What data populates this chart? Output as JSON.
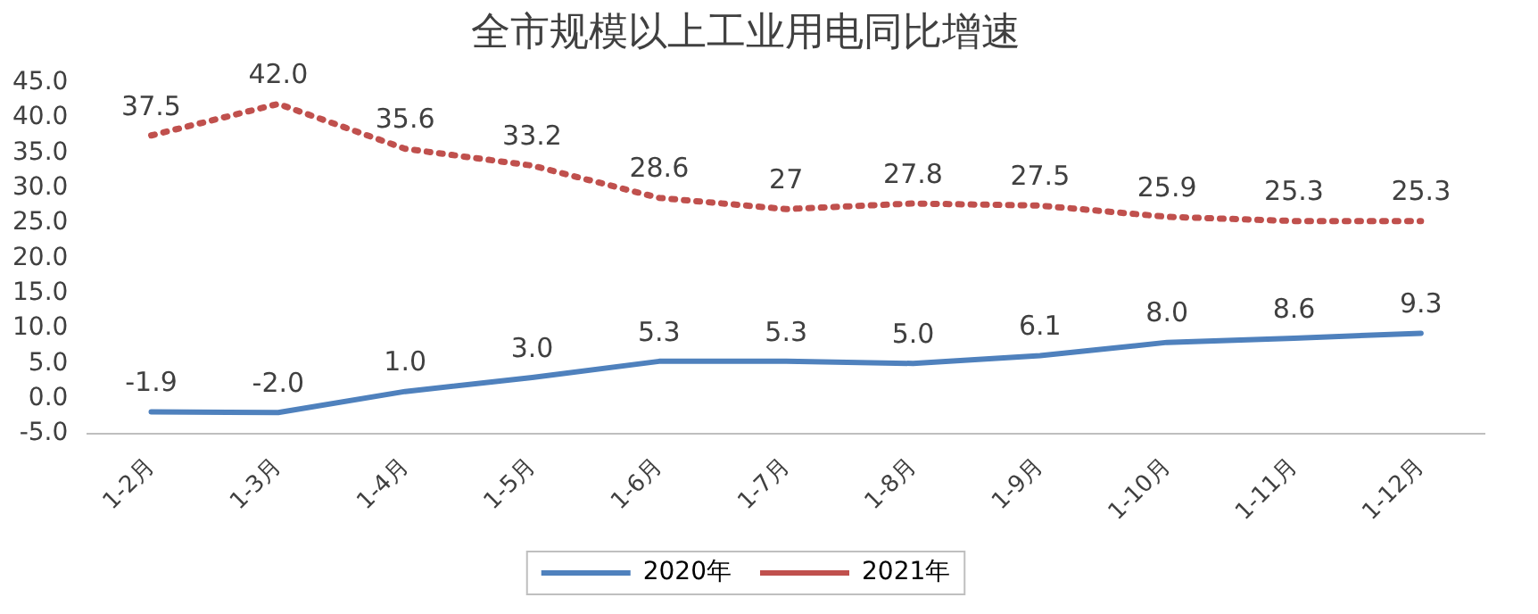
{
  "chart_data": {
    "type": "line",
    "title": "全市规模以上工业用电同比增速",
    "categories": [
      "1-2月",
      "1-3月",
      "1-4月",
      "1-5月",
      "1-6月",
      "1-7月",
      "1-8月",
      "1-9月",
      "1-10月",
      "1-11月",
      "1-12月"
    ],
    "series": [
      {
        "name": "2020年",
        "color": "#4f81bd",
        "line_style": "solid",
        "values": [
          -1.9,
          -2.0,
          1.0,
          3.0,
          5.3,
          5.3,
          5.0,
          6.1,
          8.0,
          8.6,
          9.3
        ],
        "value_labels": [
          "-1.9",
          "-2.0",
          "1.0",
          "3.0",
          "5.3",
          "5.3",
          "5.0",
          "6.1",
          "8.0",
          "8.6",
          "9.3"
        ]
      },
      {
        "name": "2021年",
        "color": "#c0504d",
        "line_style": "dotted",
        "values": [
          37.5,
          42.0,
          35.6,
          33.2,
          28.6,
          27,
          27.8,
          27.5,
          25.9,
          25.3,
          25.3
        ],
        "value_labels": [
          "37.5",
          "42.0",
          "35.6",
          "33.2",
          "28.6",
          "27",
          "27.8",
          "27.5",
          "25.9",
          "25.3",
          "25.3"
        ]
      }
    ],
    "ylim": [
      -5,
      45
    ],
    "yticks": [
      {
        "value": -5,
        "label": "-5.0"
      },
      {
        "value": 0,
        "label": "0.0"
      },
      {
        "value": 5,
        "label": "5.0"
      },
      {
        "value": 10,
        "label": "10.0"
      },
      {
        "value": 15,
        "label": "15.0"
      },
      {
        "value": 20,
        "label": "20.0"
      },
      {
        "value": 25,
        "label": "25.0"
      },
      {
        "value": 30,
        "label": "30.0"
      },
      {
        "value": 35,
        "label": "35.0"
      },
      {
        "value": 40,
        "label": "40.0"
      },
      {
        "value": 45,
        "label": "45.0"
      }
    ],
    "grid": false,
    "legend": "bottom",
    "marker": "none"
  }
}
